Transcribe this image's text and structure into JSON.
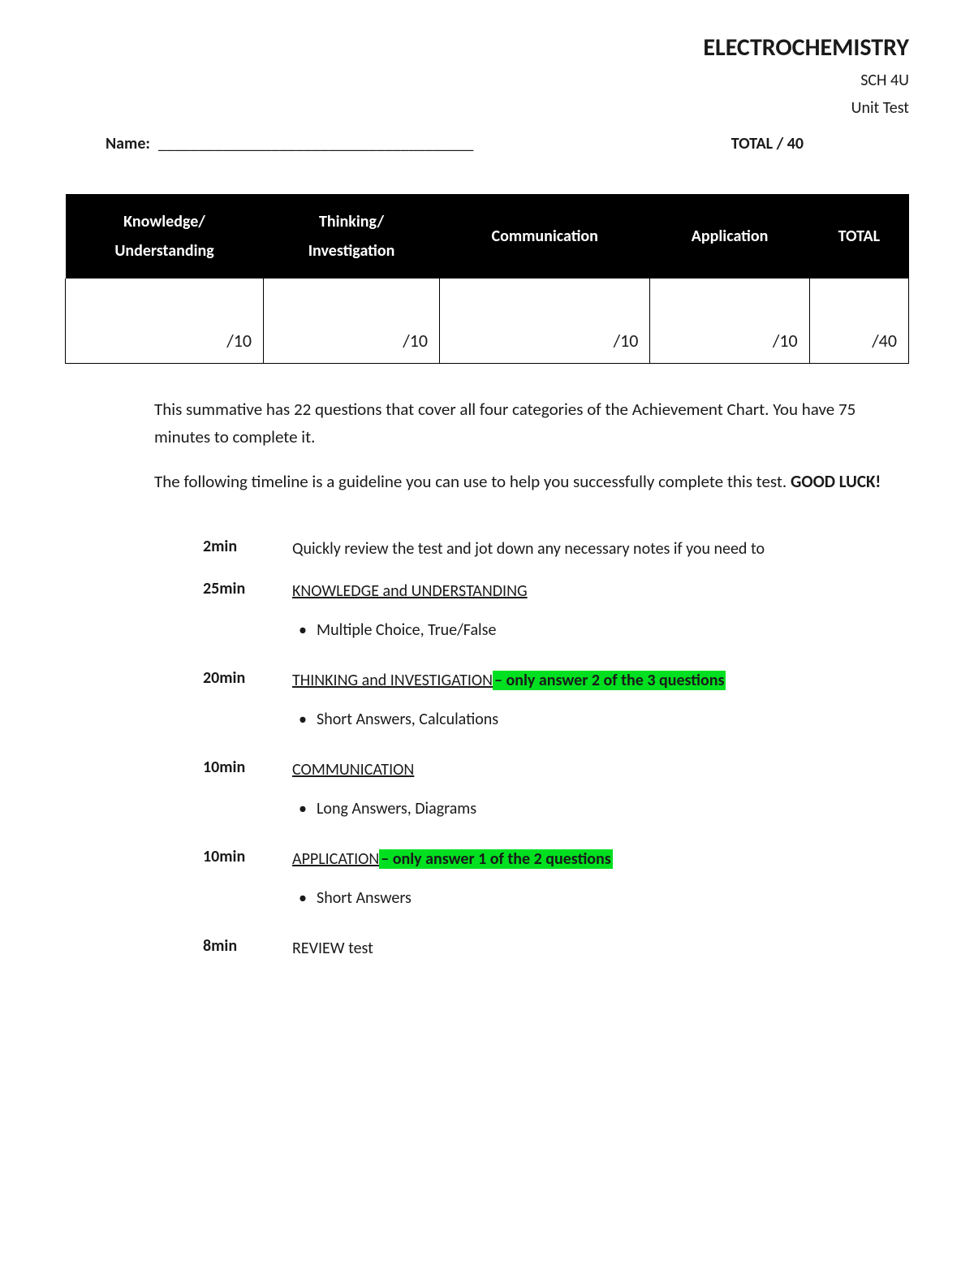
{
  "header": {
    "title": "ELECTROCHEMISTRY",
    "course": "SCH 4U",
    "type": "Unit Test"
  },
  "name_row": {
    "label": "Name:",
    "line": "_______________________________________",
    "total": "TOTAL    / 40"
  },
  "rubric": {
    "headers": [
      "Knowledge/ Understanding",
      "Thinking/ Investigation",
      "Communication",
      "Application",
      "TOTAL"
    ],
    "scores": [
      "/10",
      "/10",
      "/10",
      "/10",
      "/40"
    ]
  },
  "intro": {
    "p1": "This summative has 22 questions that cover all four categories of the Achievement Chart.  You have 75 minutes to complete it.",
    "p2_a": "The following timeline is a guideline you can use to help you successfully complete this test.  ",
    "p2_b": "GOOD LUCK!"
  },
  "timeline": [
    {
      "time": "2min",
      "desc_plain": "Quickly review the test and jot down any necessary notes if you need to",
      "bullets": []
    },
    {
      "time": "25min",
      "section": "KNOWLEDGE and UNDERSTANDING",
      "bullets": [
        "Multiple Choice, True/False"
      ]
    },
    {
      "time": "20min",
      "section": "THINKING and INVESTIGATION",
      "highlight": "– only answer 2 of the 3 questions",
      "bullets": [
        "Short Answers, Calculations"
      ]
    },
    {
      "time": "10min",
      "section": "COMMUNICATION",
      "bullets": [
        "Long Answers, Diagrams"
      ]
    },
    {
      "time": "10min",
      "section": "APPLICATION",
      "highlight": "– only answer 1 of the 2 questions",
      "bullets": [
        "Short Answers"
      ]
    },
    {
      "time": "8min",
      "desc_plain": "REVIEW test",
      "bullets": []
    }
  ],
  "colors": {
    "highlight_bg": "#00e020",
    "header_bg": "#000000",
    "header_fg": "#ffffff",
    "text": "#1a1a1a",
    "page_bg": "#ffffff"
  }
}
